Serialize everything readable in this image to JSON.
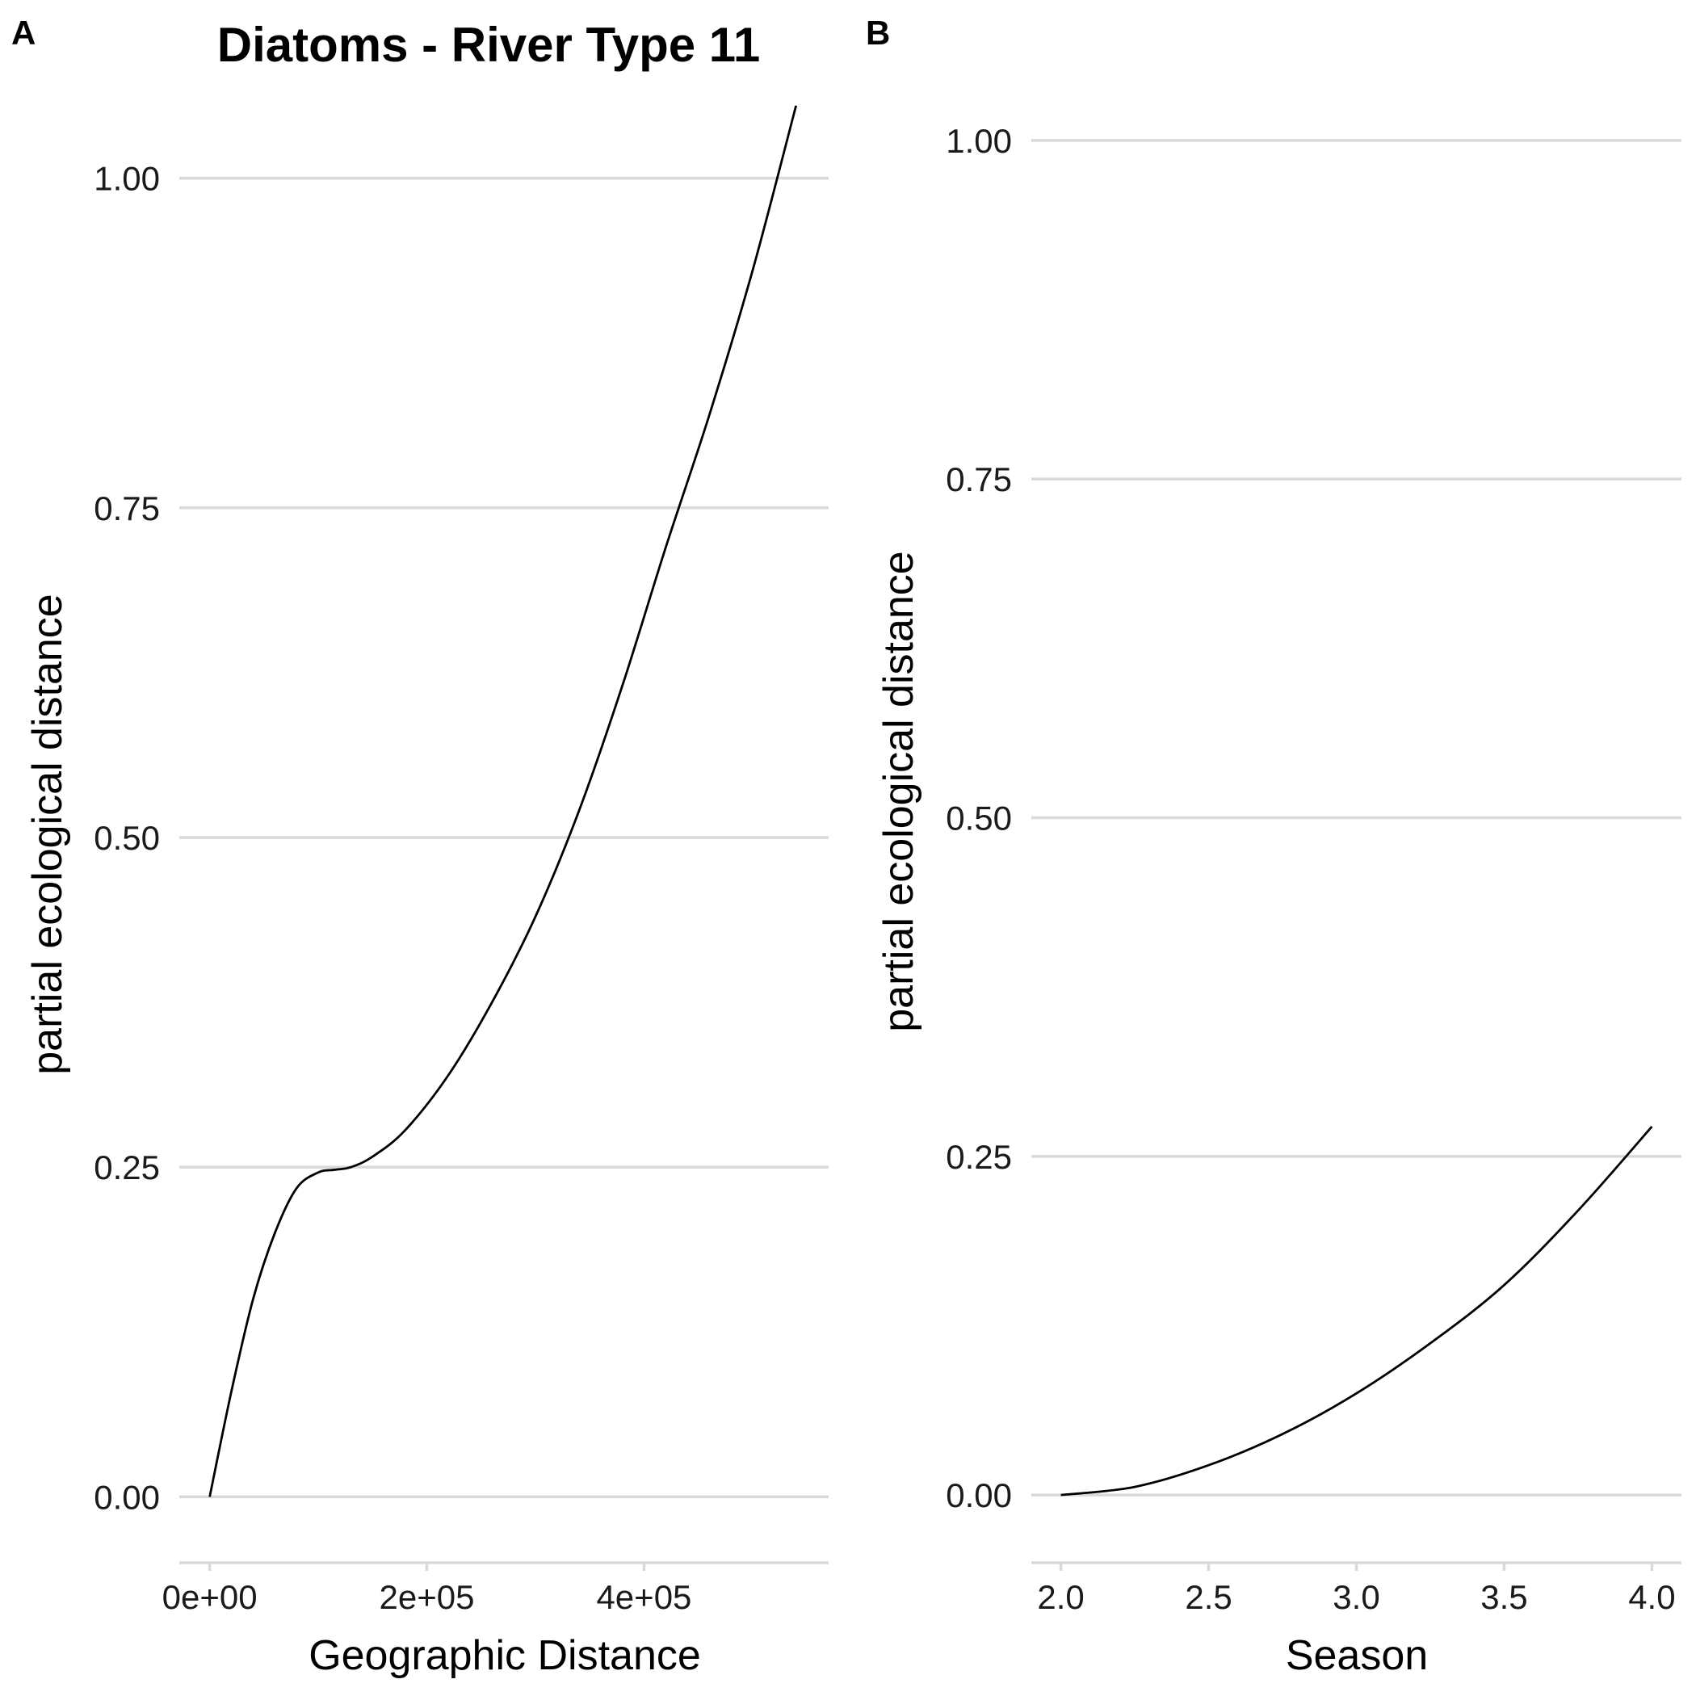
{
  "title": "Diatoms - River Type 11",
  "chart_data": [
    {
      "panel": "A",
      "type": "line",
      "title": "Diatoms - River Type 11",
      "xlabel": "Geographic Distance",
      "ylabel": "partial ecological distance",
      "xlim": [
        -28000,
        570000
      ],
      "ylim": [
        -0.05,
        1.08
      ],
      "xticks": [
        0,
        200000,
        400000
      ],
      "xtick_labels": [
        "0e+00",
        "2e+05",
        "4e+05"
      ],
      "yticks": [
        0,
        0.25,
        0.5,
        0.75,
        1.0
      ],
      "ytick_labels": [
        "0.00",
        "0.25",
        "0.50",
        "0.75",
        "1.00"
      ],
      "grid": "horizontal",
      "series": [
        {
          "x": [
            0,
            20000,
            40000,
            60000,
            80000,
            100000,
            115000,
            130000,
            150000,
            180000,
            220000,
            260000,
            300000,
            340000,
            380000,
            420000,
            460000,
            500000,
            540000
          ],
          "y": [
            0.0,
            0.08,
            0.15,
            0.2,
            0.234,
            0.246,
            0.248,
            0.25,
            0.258,
            0.278,
            0.32,
            0.375,
            0.44,
            0.52,
            0.615,
            0.72,
            0.82,
            0.93,
            1.055
          ]
        }
      ]
    },
    {
      "panel": "B",
      "type": "line",
      "xlabel": "Season",
      "ylabel": "partial ecological distance",
      "xlim": [
        1.9,
        4.1
      ],
      "ylim": [
        -0.05,
        1.05
      ],
      "xticks": [
        2.0,
        2.5,
        3.0,
        3.5,
        4.0
      ],
      "xtick_labels": [
        "2.0",
        "2.5",
        "3.0",
        "3.5",
        "4.0"
      ],
      "yticks": [
        0,
        0.25,
        0.5,
        0.75,
        1.0
      ],
      "ytick_labels": [
        "0.00",
        "0.25",
        "0.50",
        "0.75",
        "1.00"
      ],
      "grid": "horizontal",
      "series": [
        {
          "x": [
            2.0,
            2.25,
            2.5,
            2.75,
            3.0,
            3.25,
            3.5,
            3.75,
            4.0
          ],
          "y": [
            0.0,
            0.006,
            0.022,
            0.045,
            0.075,
            0.112,
            0.155,
            0.21,
            0.272
          ]
        }
      ]
    }
  ]
}
